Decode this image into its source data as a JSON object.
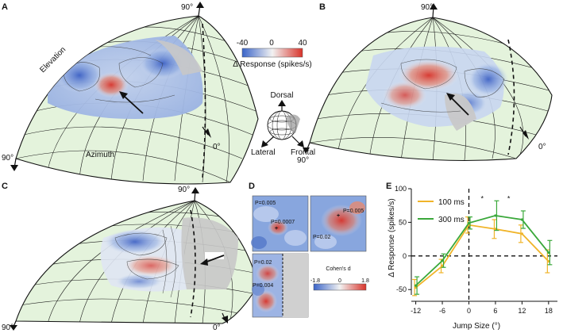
{
  "panels": {
    "a": {
      "label": "A",
      "top": "90°",
      "left": "90°",
      "right": "0°",
      "elevation": "Elevation",
      "azimuth": "Azimuth"
    },
    "b": {
      "label": "B",
      "top": "90°",
      "left": "90°",
      "right": "0°"
    },
    "c": {
      "label": "C",
      "top": "90°",
      "left": "90°",
      "right": "0°"
    },
    "d": {
      "label": "D",
      "pvalues": [
        "P=0.005",
        "P=0.0007",
        "P=0.005",
        "P=0.02",
        "P=0.02",
        "P=0.004"
      ],
      "colorbar": {
        "title": "Cohen's d",
        "min": "-1.8",
        "mid": "0",
        "max": "1.8"
      }
    },
    "e": {
      "label": "E"
    }
  },
  "colorbar_main": {
    "min": "-40",
    "mid": "0",
    "max": "40",
    "label": "Δ Response (spikes/s)",
    "colors": [
      "#3a64c8",
      "#f2f2f2",
      "#d8332a"
    ]
  },
  "orientation": {
    "dorsal": "Dorsal",
    "lateral": "Lateral",
    "frontal": "Frontal"
  },
  "colors": {
    "sphere_fill": "#e4f3dc",
    "gray_region": "#c8c8c8",
    "orange": "#f0b429",
    "green": "#3aa83a"
  },
  "chart_data": {
    "type": "line",
    "x": [
      -12,
      -6,
      0,
      6,
      12,
      18
    ],
    "xlabel": "Jump Size (°)",
    "ylabel": "Δ Response (spikes/s)",
    "xticks": [
      "-12",
      "-6",
      "0",
      "6",
      "12",
      "18"
    ],
    "yticks": [
      "-50",
      "0",
      "50",
      "100"
    ],
    "xlim": [
      -13,
      20
    ],
    "ylim": [
      -58,
      100
    ],
    "series": [
      {
        "name": "100 ms",
        "color": "#f0b429",
        "values": [
          -47,
          -15,
          46,
          40,
          33,
          -8
        ],
        "err": [
          12,
          10,
          12,
          14,
          13,
          17
        ]
      },
      {
        "name": "300 ms",
        "color": "#3aa83a",
        "values": [
          -44,
          -7,
          49,
          60,
          54,
          5
        ],
        "err": [
          13,
          10,
          9,
          22,
          13,
          18
        ]
      }
    ],
    "markers": [
      "*",
      "*"
    ]
  }
}
